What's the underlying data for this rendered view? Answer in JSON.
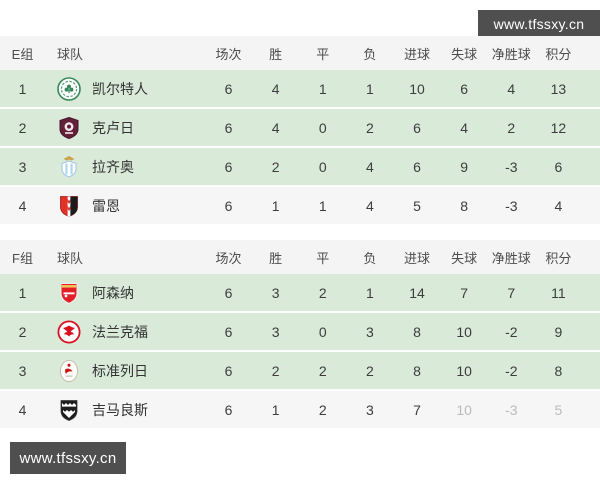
{
  "watermark": {
    "text": "www.tfssxy.cn"
  },
  "colors": {
    "banner_bg": "#4f4f4f",
    "header_bg": "#f3f4f3",
    "qualified_row_bg": "#d9ead9",
    "plain_row_bg": "#f5f6f5"
  },
  "table": {
    "team_column": "球队",
    "stat_columns": [
      "场次",
      "胜",
      "平",
      "负",
      "进球",
      "失球",
      "净胜球",
      "积分"
    ],
    "groups": [
      {
        "label": "E组",
        "rows": [
          {
            "rank": "1",
            "team": "凯尔特人",
            "badge": "celtic",
            "highlight": true,
            "stats": [
              "6",
              "4",
              "1",
              "1",
              "10",
              "6",
              "4",
              "13"
            ]
          },
          {
            "rank": "2",
            "team": "克卢日",
            "badge": "cluj",
            "highlight": true,
            "stats": [
              "6",
              "4",
              "0",
              "2",
              "6",
              "4",
              "2",
              "12"
            ]
          },
          {
            "rank": "3",
            "team": "拉齐奥",
            "badge": "lazio",
            "highlight": true,
            "stats": [
              "6",
              "2",
              "0",
              "4",
              "6",
              "9",
              "-3",
              "6"
            ]
          },
          {
            "rank": "4",
            "team": "雷恩",
            "badge": "rennes",
            "highlight": false,
            "stats": [
              "6",
              "1",
              "1",
              "4",
              "5",
              "8",
              "-3",
              "4"
            ]
          }
        ]
      },
      {
        "label": "F组",
        "rows": [
          {
            "rank": "1",
            "team": "阿森纳",
            "badge": "arsenal",
            "highlight": true,
            "stats": [
              "6",
              "3",
              "2",
              "1",
              "14",
              "7",
              "7",
              "11"
            ]
          },
          {
            "rank": "2",
            "team": "法兰克福",
            "badge": "frankfurt",
            "highlight": true,
            "stats": [
              "6",
              "3",
              "0",
              "3",
              "8",
              "10",
              "-2",
              "9"
            ]
          },
          {
            "rank": "3",
            "team": "标准列日",
            "badge": "standard",
            "highlight": true,
            "stats": [
              "6",
              "2",
              "2",
              "2",
              "8",
              "10",
              "-2",
              "8"
            ]
          },
          {
            "rank": "4",
            "team": "吉马良斯",
            "badge": "guimaraes",
            "highlight": false,
            "stats": [
              "6",
              "1",
              "2",
              "3",
              "7",
              "10",
              "-3",
              "5"
            ],
            "faded_stats": [
              5,
              6,
              7
            ]
          }
        ]
      }
    ]
  }
}
